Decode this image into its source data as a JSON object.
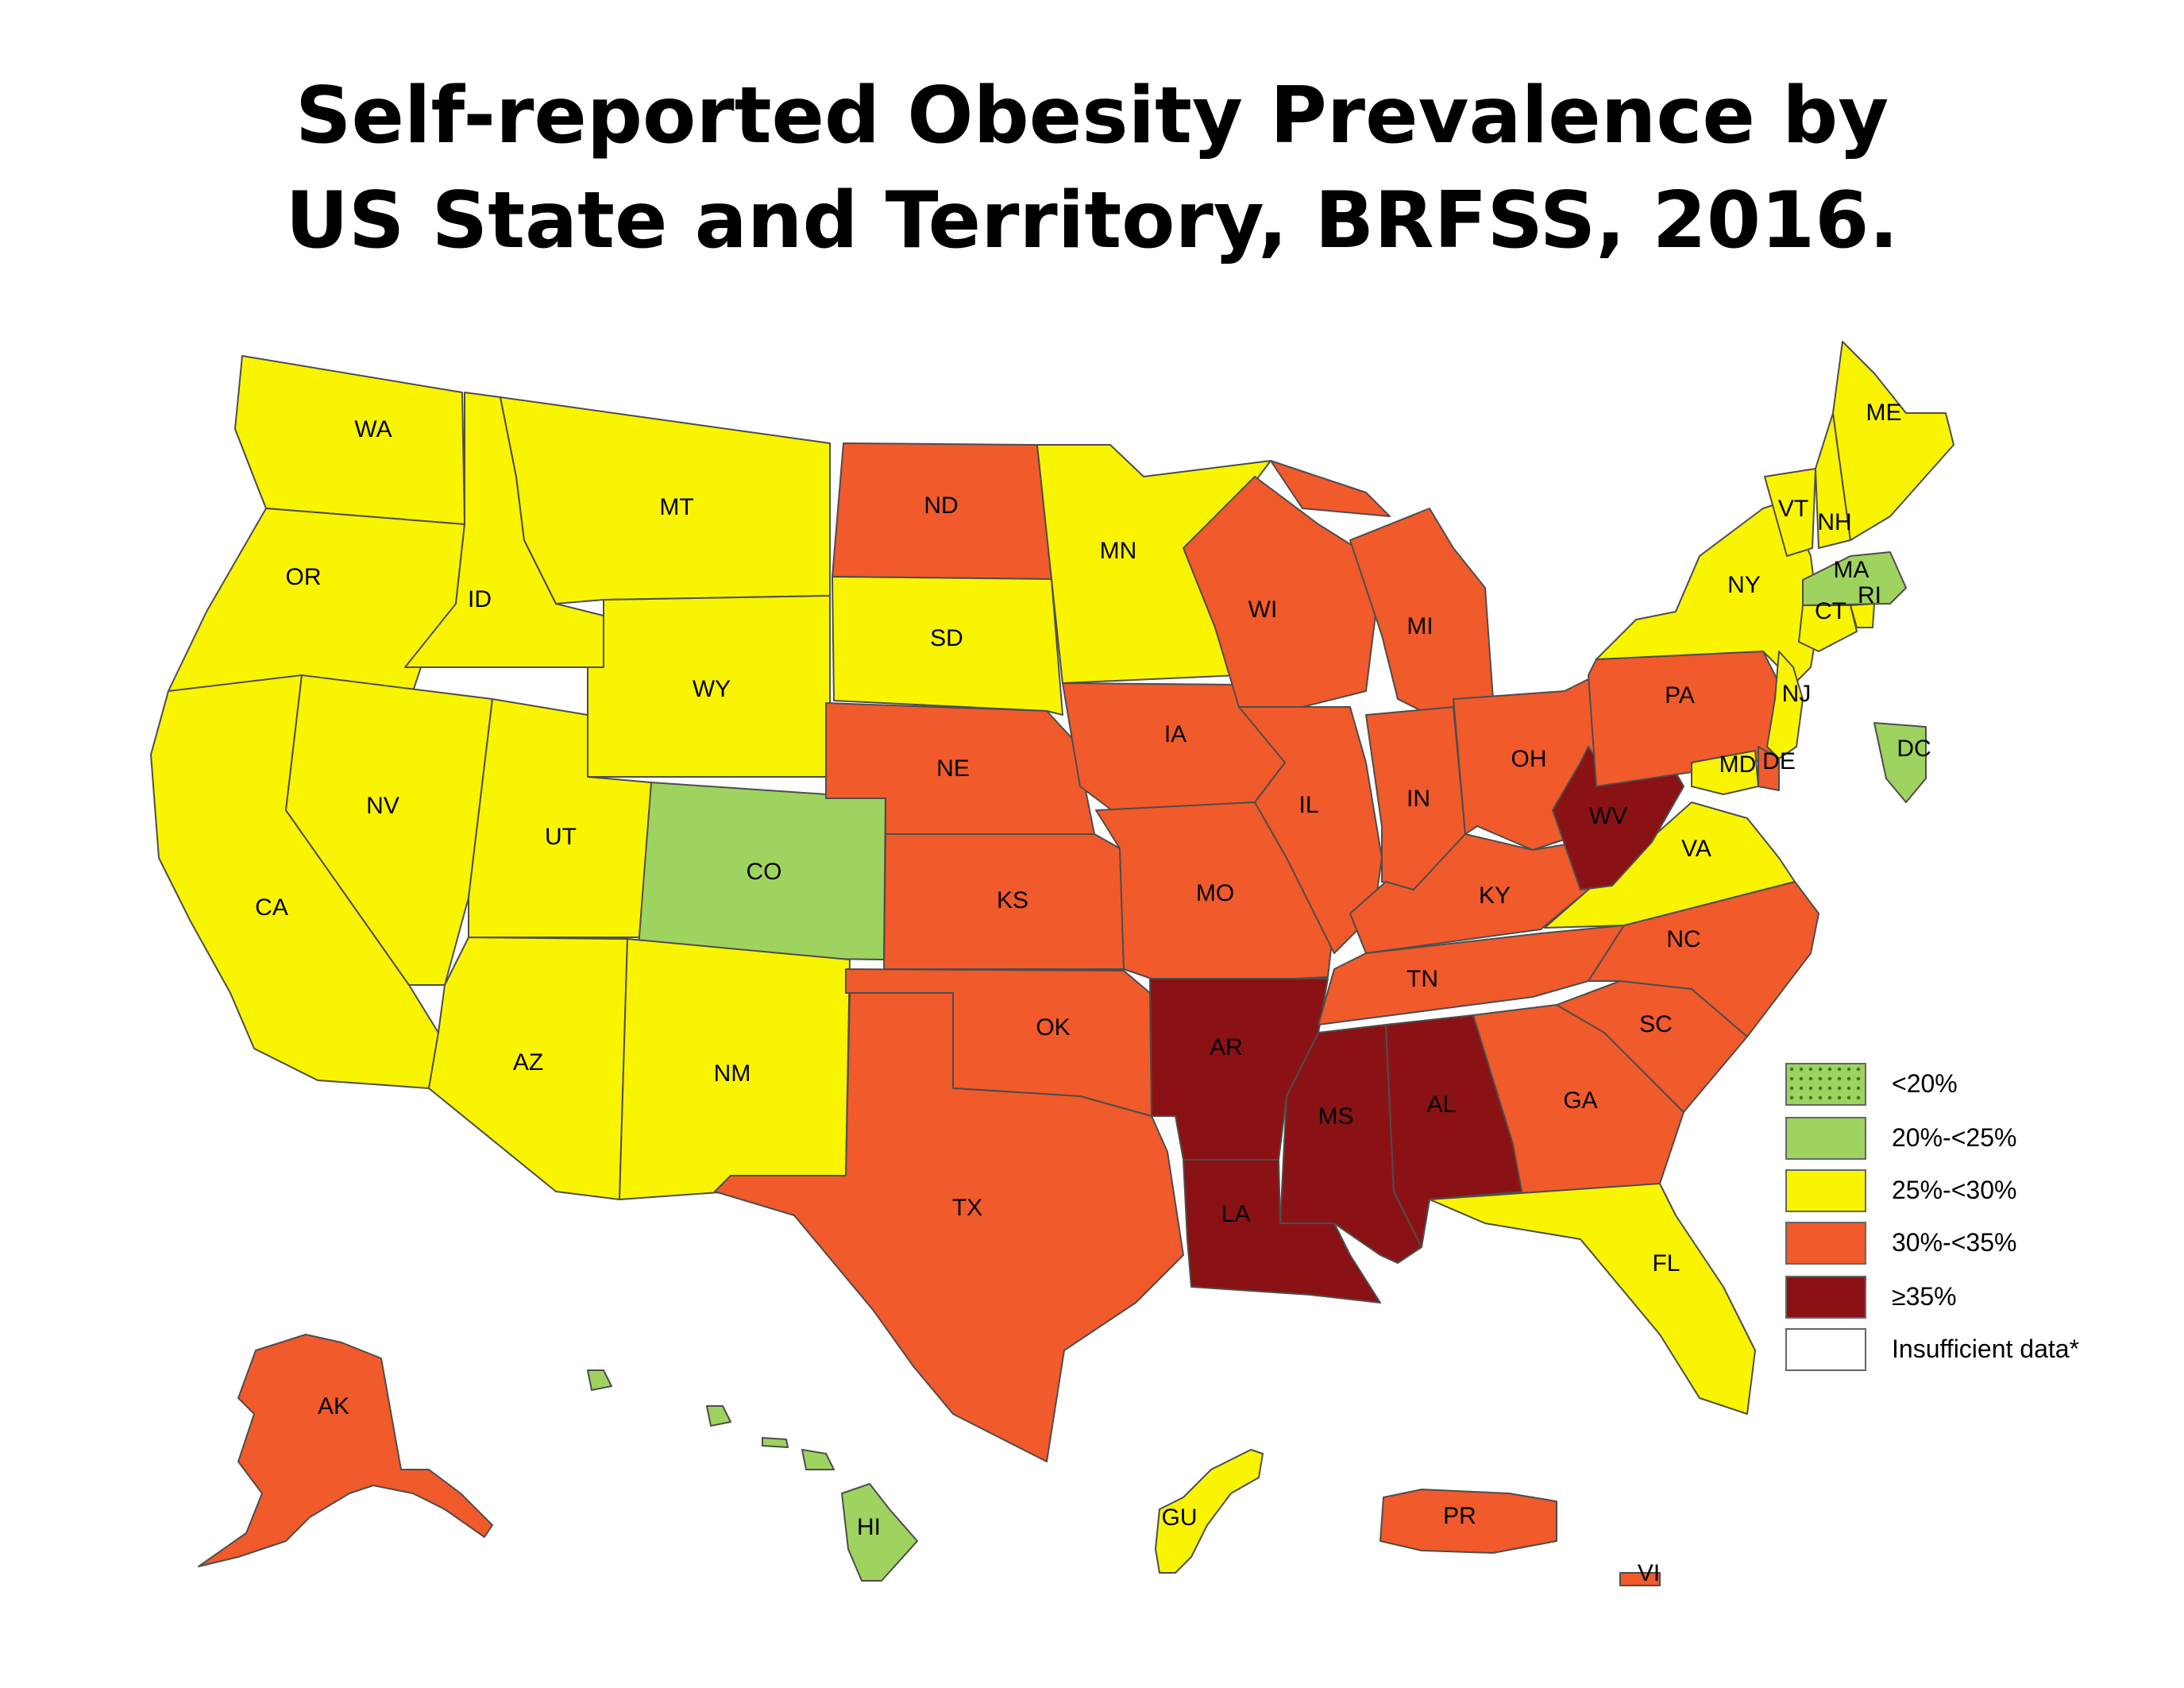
{
  "title": {
    "line1": "Self-reported Obesity Prevalence by",
    "line2": "US State and Territory, BRFSS, 2016."
  },
  "colors": {
    "lt20": "#9fd35f",
    "c20_25": "#9fd35f",
    "c25_30": "#f9f400",
    "c30_35": "#f15a2b",
    "ge35": "#8b1214",
    "insufficient": "#ffffff",
    "border": "#4d4d4d"
  },
  "legend": [
    {
      "label": "<20%",
      "key": "lt20",
      "pattern": "dots"
    },
    {
      "label": "20%-<25%",
      "key": "c20_25"
    },
    {
      "label": "25%-<30%",
      "key": "c25_30"
    },
    {
      "label": "30%-<35%",
      "key": "c30_35"
    },
    {
      "label": "≥35%",
      "key": "ge35"
    },
    {
      "label": "Insufficient data*",
      "key": "insufficient"
    }
  ],
  "states": [
    {
      "abbr": "WA",
      "category": "c25_30"
    },
    {
      "abbr": "OR",
      "category": "c25_30"
    },
    {
      "abbr": "CA",
      "category": "c25_30"
    },
    {
      "abbr": "ID",
      "category": "c25_30"
    },
    {
      "abbr": "NV",
      "category": "c25_30"
    },
    {
      "abbr": "MT",
      "category": "c25_30"
    },
    {
      "abbr": "WY",
      "category": "c25_30"
    },
    {
      "abbr": "UT",
      "category": "c25_30"
    },
    {
      "abbr": "AZ",
      "category": "c25_30"
    },
    {
      "abbr": "CO",
      "category": "c20_25"
    },
    {
      "abbr": "NM",
      "category": "c25_30"
    },
    {
      "abbr": "ND",
      "category": "c30_35"
    },
    {
      "abbr": "SD",
      "category": "c25_30"
    },
    {
      "abbr": "NE",
      "category": "c30_35"
    },
    {
      "abbr": "KS",
      "category": "c30_35"
    },
    {
      "abbr": "OK",
      "category": "c30_35"
    },
    {
      "abbr": "TX",
      "category": "c30_35"
    },
    {
      "abbr": "MN",
      "category": "c25_30"
    },
    {
      "abbr": "IA",
      "category": "c30_35"
    },
    {
      "abbr": "MO",
      "category": "c30_35"
    },
    {
      "abbr": "AR",
      "category": "ge35"
    },
    {
      "abbr": "LA",
      "category": "ge35"
    },
    {
      "abbr": "WI",
      "category": "c30_35"
    },
    {
      "abbr": "IL",
      "category": "c30_35"
    },
    {
      "abbr": "MI",
      "category": "c30_35"
    },
    {
      "abbr": "IN",
      "category": "c30_35"
    },
    {
      "abbr": "OH",
      "category": "c30_35"
    },
    {
      "abbr": "KY",
      "category": "c30_35"
    },
    {
      "abbr": "TN",
      "category": "c30_35"
    },
    {
      "abbr": "MS",
      "category": "ge35"
    },
    {
      "abbr": "AL",
      "category": "ge35"
    },
    {
      "abbr": "GA",
      "category": "c30_35"
    },
    {
      "abbr": "FL",
      "category": "c25_30"
    },
    {
      "abbr": "SC",
      "category": "c30_35"
    },
    {
      "abbr": "NC",
      "category": "c30_35"
    },
    {
      "abbr": "VA",
      "category": "c25_30"
    },
    {
      "abbr": "WV",
      "category": "ge35"
    },
    {
      "abbr": "PA",
      "category": "c30_35"
    },
    {
      "abbr": "NY",
      "category": "c25_30"
    },
    {
      "abbr": "VT",
      "category": "c25_30"
    },
    {
      "abbr": "NH",
      "category": "c25_30"
    },
    {
      "abbr": "ME",
      "category": "c25_30"
    },
    {
      "abbr": "MA",
      "category": "c20_25"
    },
    {
      "abbr": "RI",
      "category": "c25_30"
    },
    {
      "abbr": "CT",
      "category": "c25_30"
    },
    {
      "abbr": "NJ",
      "category": "c25_30"
    },
    {
      "abbr": "DE",
      "category": "c30_35"
    },
    {
      "abbr": "MD",
      "category": "c25_30"
    },
    {
      "abbr": "DC",
      "category": "c20_25"
    },
    {
      "abbr": "AK",
      "category": "c30_35"
    },
    {
      "abbr": "HI",
      "category": "c20_25"
    },
    {
      "abbr": "GU",
      "category": "c25_30"
    },
    {
      "abbr": "PR",
      "category": "c30_35"
    },
    {
      "abbr": "VI",
      "category": "c30_35"
    }
  ]
}
